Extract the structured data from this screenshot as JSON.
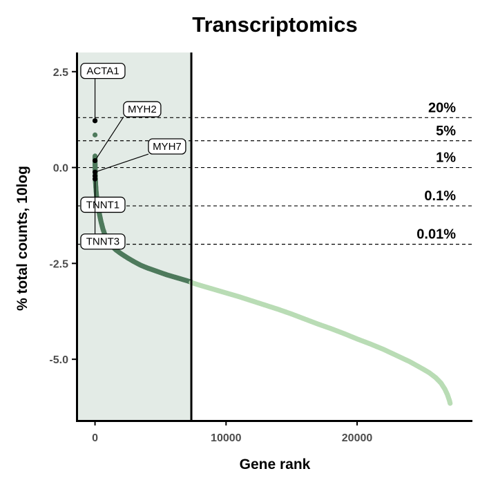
{
  "chart_data": {
    "type": "scatter",
    "title": "Transcriptomics",
    "xlabel": "Gene rank",
    "ylabel": "% total counts, 10log",
    "xlim": [
      -1400,
      28800
    ],
    "ylim": [
      -6.6,
      3.0
    ],
    "x_ticks": [
      {
        "value": 0,
        "label": "0"
      },
      {
        "value": 10000,
        "label": "10000"
      },
      {
        "value": 20000,
        "label": "20000"
      }
    ],
    "y_ticks": [
      {
        "value": 2.5,
        "label": "2.5"
      },
      {
        "value": 0,
        "label": "0.0"
      },
      {
        "value": -2.5,
        "label": "-2.5"
      },
      {
        "value": -5,
        "label": "-5.0"
      }
    ],
    "grid": false,
    "highlight_region": {
      "x_start": -1400,
      "x_end": 7350,
      "fill": "#e3ebe6"
    },
    "cutoff_rank": 7350,
    "reference_lines": [
      {
        "y": 1.301,
        "label": "20%"
      },
      {
        "y": 0.699,
        "label": "5%"
      },
      {
        "y": 0.0,
        "label": "1%"
      },
      {
        "y": -1.0,
        "label": "0.1%"
      },
      {
        "y": -2.0,
        "label": "0.01%"
      }
    ],
    "series": [
      {
        "color": "#4e7a5c",
        "x": [
          0,
          1,
          2,
          3,
          5,
          8,
          12,
          20,
          30,
          50,
          80,
          120,
          200,
          300,
          450,
          600,
          800,
          1000,
          1300,
          1600,
          2000,
          2500,
          3000,
          3500,
          4000,
          4500,
          5000,
          5500,
          6000,
          6500,
          7000,
          7350
        ],
        "y": [
          1.22,
          0.85,
          0.3,
          0.18,
          0.1,
          0.0,
          -0.1,
          -0.2,
          -0.32,
          -0.45,
          -0.6,
          -0.75,
          -0.95,
          -1.15,
          -1.4,
          -1.6,
          -1.8,
          -1.92,
          -2.05,
          -2.15,
          -2.25,
          -2.36,
          -2.46,
          -2.55,
          -2.62,
          -2.68,
          -2.74,
          -2.8,
          -2.85,
          -2.9,
          -2.95,
          -2.99
        ]
      },
      {
        "color": "#b9dcb5",
        "x": [
          7350,
          8000,
          9000,
          10000,
          11000,
          12000,
          13000,
          14000,
          15000,
          16000,
          17000,
          18000,
          19000,
          20000,
          21000,
          22000,
          23000,
          24000,
          25000,
          25500,
          26000,
          26400,
          26700,
          26900,
          27050,
          27100
        ],
        "y": [
          -3.0,
          -3.07,
          -3.17,
          -3.27,
          -3.37,
          -3.48,
          -3.59,
          -3.7,
          -3.82,
          -3.95,
          -4.08,
          -4.2,
          -4.33,
          -4.47,
          -4.6,
          -4.74,
          -4.9,
          -5.06,
          -5.25,
          -5.35,
          -5.48,
          -5.62,
          -5.78,
          -5.93,
          -6.08,
          -6.15
        ]
      }
    ],
    "highlighted_genes": [
      {
        "name": "ACTA1",
        "x": 0,
        "y": 1.22,
        "label_x": 600,
        "label_y": 2.52
      },
      {
        "name": "MYH2",
        "x": 0,
        "y": 0.18,
        "label_x": 3600,
        "label_y": 1.52
      },
      {
        "name": "MYH7",
        "x": 0,
        "y": -0.12,
        "label_x": 5500,
        "label_y": 0.55
      },
      {
        "name": "TNNT1",
        "x": 0,
        "y": -0.22,
        "label_x": 600,
        "label_y": -0.97
      },
      {
        "name": "TNNT3",
        "x": 0,
        "y": -0.3,
        "label_x": 600,
        "label_y": -1.93
      }
    ]
  }
}
